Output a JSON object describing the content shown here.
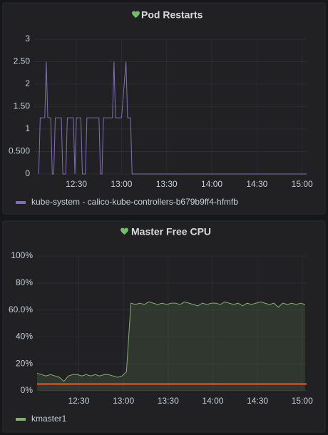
{
  "chart_data": [
    {
      "type": "line",
      "title": "Pod Restarts",
      "x": [
        "12:05",
        "12:06",
        "12:09",
        "12:10",
        "12:11",
        "12:13",
        "12:14",
        "12:15",
        "12:16",
        "12:20",
        "12:21",
        "12:23",
        "12:24",
        "12:28",
        "12:29",
        "12:30",
        "12:33",
        "12:34",
        "12:36",
        "12:37",
        "12:45",
        "12:46",
        "12:47",
        "12:48",
        "12:51",
        "12:54",
        "12:55",
        "12:56",
        "12:58",
        "13:00",
        "13:03",
        "13:04",
        "13:06",
        "13:07",
        "15:03"
      ],
      "series": [
        {
          "name": "kube-system - calico-kube-controllers-b679b9ff4-hfmfb",
          "color": "#806eb7",
          "values": [
            0,
            1.25,
            1.25,
            2.5,
            1.25,
            1.25,
            0,
            0,
            1.25,
            1.25,
            0,
            0,
            1.25,
            1.25,
            0,
            1.25,
            1.25,
            0,
            0,
            1.25,
            1.25,
            0,
            0,
            1.25,
            1.25,
            1.25,
            2.5,
            1.25,
            1.25,
            1.25,
            2.5,
            1.25,
            1.25,
            0,
            0
          ]
        }
      ],
      "xlim": [
        "12:02",
        "15:03"
      ],
      "xticks": [
        "12:30",
        "13:00",
        "13:30",
        "14:00",
        "14:30",
        "15:00"
      ],
      "ylim": [
        0,
        3
      ],
      "yticks": [
        0,
        {
          "value": 0.5,
          "label": "0.500"
        },
        1,
        {
          "value": 1.5,
          "label": "1.50"
        },
        2,
        {
          "value": 2.5,
          "label": "2.50"
        },
        3
      ],
      "grid": true,
      "fill": false
    },
    {
      "type": "line",
      "title": "Master Free CPU",
      "x": [
        "12:02",
        "12:05",
        "12:08",
        "12:11",
        "12:14",
        "12:17",
        "12:20",
        "12:23",
        "12:26",
        "12:29",
        "12:32",
        "12:35",
        "12:38",
        "12:41",
        "12:44",
        "12:47",
        "12:50",
        "12:53",
        "12:56",
        "12:59",
        "13:02",
        "13:05",
        "13:08",
        "13:11",
        "13:14",
        "13:17",
        "13:20",
        "13:23",
        "13:26",
        "13:29",
        "13:32",
        "13:35",
        "13:38",
        "13:41",
        "13:44",
        "13:47",
        "13:50",
        "13:53",
        "13:56",
        "13:59",
        "14:02",
        "14:05",
        "14:08",
        "14:11",
        "14:14",
        "14:17",
        "14:20",
        "14:23",
        "14:26",
        "14:29",
        "14:32",
        "14:35",
        "14:38",
        "14:41",
        "14:44",
        "14:47",
        "14:50",
        "14:53",
        "14:56",
        "14:59",
        "15:02"
      ],
      "series": [
        {
          "name": "kmaster1",
          "color": "#7eb26d",
          "values": [
            13,
            12,
            11,
            12,
            11,
            10,
            7,
            11,
            12,
            12,
            11,
            12,
            11,
            12,
            11,
            12,
            12,
            11,
            10,
            11,
            14,
            65,
            64,
            65,
            64,
            66,
            65,
            64,
            65,
            64,
            65,
            65,
            64,
            66,
            65,
            64,
            63,
            65,
            64,
            65,
            65,
            64,
            66,
            65,
            64,
            65,
            63,
            65,
            64,
            65,
            66,
            65,
            64,
            65,
            62,
            65,
            64,
            65,
            64,
            65,
            64
          ]
        }
      ],
      "threshold": {
        "value": 5,
        "color": "#e0632d"
      },
      "xlim": [
        "12:02",
        "15:03"
      ],
      "xticks": [
        "12:30",
        "13:00",
        "13:30",
        "14:00",
        "14:30",
        "15:00"
      ],
      "ylim": [
        0,
        100
      ],
      "yticks": [
        {
          "value": 0,
          "label": "0%"
        },
        {
          "value": 20,
          "label": "20%"
        },
        {
          "value": 40,
          "label": "40%"
        },
        {
          "value": 60,
          "label": "60.0%"
        },
        {
          "value": 80,
          "label": "80%"
        },
        {
          "value": 100,
          "label": "100%"
        }
      ],
      "grid": true,
      "fill": true
    }
  ]
}
